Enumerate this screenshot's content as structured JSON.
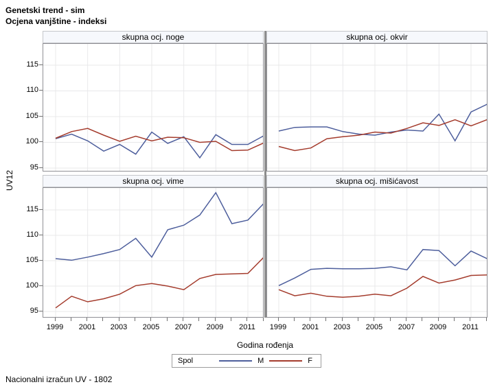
{
  "page": {
    "titles": [
      "Genetski trend - sim",
      "Ocjena vanjštine - indeksi"
    ],
    "footnote": "Nacionalni izračun UV - 1802"
  },
  "axes": {
    "y_label": "UV12",
    "x_label": "Godina rođenja",
    "y_ticks": [
      95,
      100,
      105,
      110,
      115
    ],
    "x_tick_labels": [
      1999,
      2001,
      2003,
      2005,
      2007,
      2009,
      2011
    ]
  },
  "legend": {
    "title": "Spol",
    "entries": [
      {
        "label": "M",
        "color": "#4d5e9c"
      },
      {
        "label": "F",
        "color": "#a43b2c"
      }
    ]
  },
  "colors": {
    "m_line": "#4d5e9c",
    "f_line": "#a43b2c",
    "gridline": "#e8e8ea",
    "panel_border": "#8f8f94",
    "header_fill": "#f6f8fc"
  },
  "chart_data": {
    "type": "line",
    "layout": "2x2-lattice",
    "title": "Genetski trend - sim",
    "subtitle": "Ocjena vanjštine - indeksi",
    "xlabel": "Godina rođenja",
    "ylabel": "UV12",
    "ylim": [
      93.5,
      119.3
    ],
    "grid": true,
    "legend_position": "bottom",
    "x": [
      1999,
      2000,
      2001,
      2002,
      2003,
      2004,
      2005,
      2006,
      2007,
      2008,
      2009,
      2010,
      2011,
      2012
    ],
    "panels": [
      {
        "title": "skupna ocj. noge",
        "series": [
          {
            "name": "M",
            "values": [
              100.7,
              101.6,
              100.3,
              98.3,
              99.6,
              97.7,
              102.0,
              99.8,
              101.1,
              97.0,
              101.5,
              99.6,
              99.6,
              101.3
            ]
          },
          {
            "name": "F",
            "values": [
              100.8,
              102.1,
              102.7,
              101.4,
              100.2,
              101.2,
              100.3,
              101.0,
              100.9,
              100.0,
              100.2,
              98.4,
              98.5,
              99.9
            ]
          }
        ]
      },
      {
        "title": "skupna ocj. okvir",
        "series": [
          {
            "name": "M",
            "values": [
              102.2,
              102.9,
              103.0,
              103.0,
              102.1,
              101.6,
              101.4,
              102.0,
              102.4,
              102.2,
              105.5,
              100.3,
              105.9,
              107.4
            ]
          },
          {
            "name": "F",
            "values": [
              99.2,
              98.4,
              98.9,
              100.7,
              101.1,
              101.4,
              102.0,
              101.8,
              102.7,
              103.8,
              103.3,
              104.4,
              103.2,
              104.4
            ]
          }
        ]
      },
      {
        "title": "skupna ocj. vime",
        "series": [
          {
            "name": "M",
            "values": [
              105.4,
              105.1,
              105.7,
              106.4,
              107.2,
              109.4,
              105.7,
              111.1,
              112.0,
              114.0,
              118.4,
              112.3,
              113.0,
              116.3
            ]
          },
          {
            "name": "F",
            "values": [
              95.7,
              98.0,
              96.9,
              97.5,
              98.4,
              100.1,
              100.5,
              100.0,
              99.3,
              101.5,
              102.3,
              102.4,
              102.5,
              105.7
            ]
          }
        ]
      },
      {
        "title": "skupna ocj. mišićavost",
        "series": [
          {
            "name": "M",
            "values": [
              100.1,
              101.6,
              103.3,
              103.5,
              103.4,
              103.4,
              103.5,
              103.8,
              103.2,
              107.2,
              107.0,
              104.0,
              106.9,
              105.4
            ]
          },
          {
            "name": "F",
            "values": [
              99.3,
              98.1,
              98.6,
              98.0,
              97.8,
              98.0,
              98.4,
              98.1,
              99.6,
              101.9,
              100.6,
              101.2,
              102.1,
              102.2
            ]
          }
        ]
      }
    ]
  }
}
